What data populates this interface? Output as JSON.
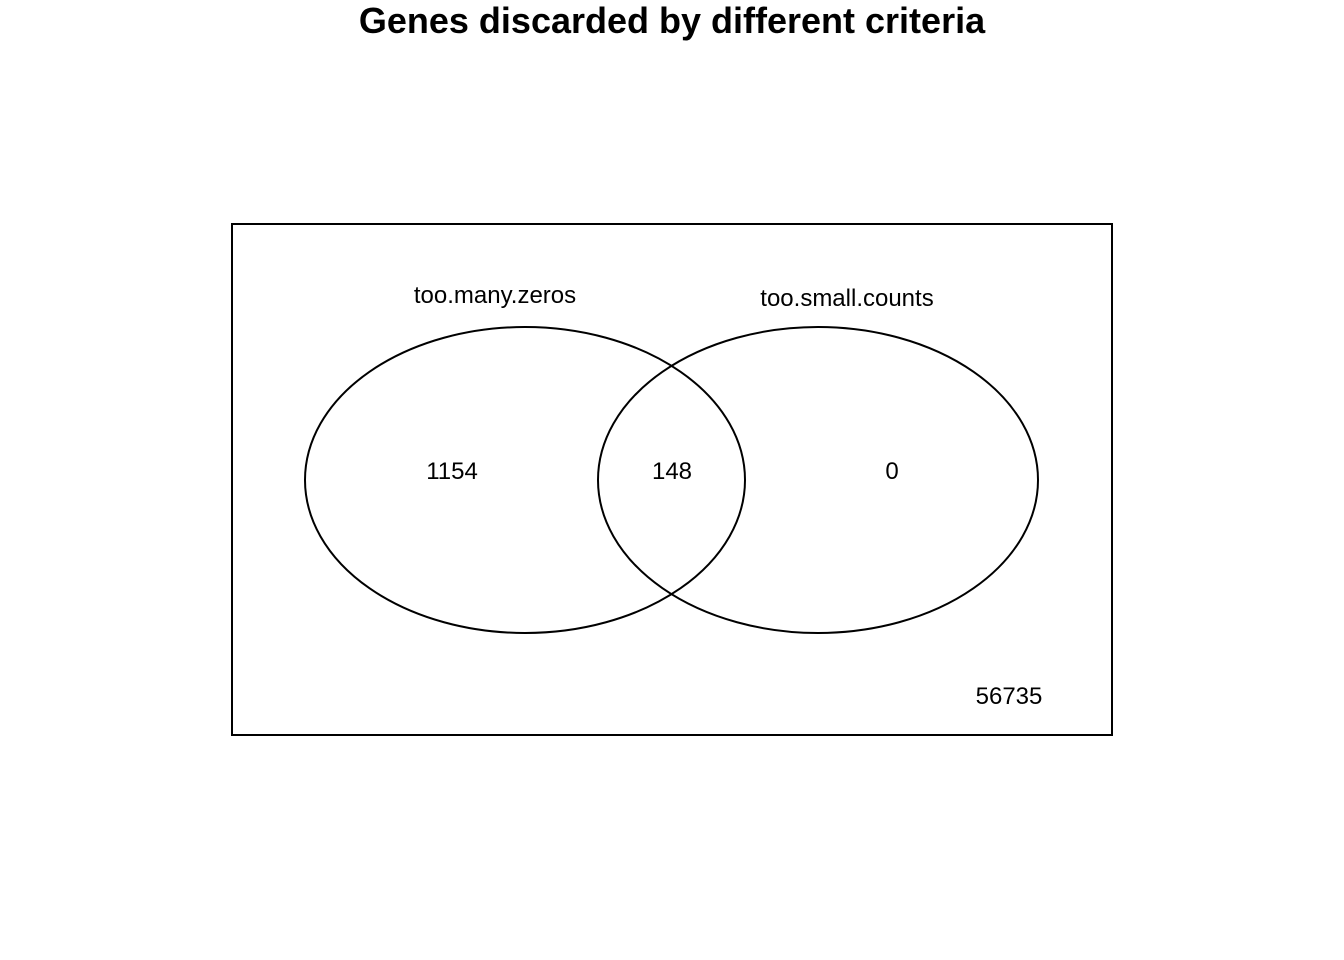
{
  "title": "Genes discarded by different criteria",
  "venn": {
    "sets": [
      {
        "name": "too.many.zeros"
      },
      {
        "name": "too.small.counts"
      }
    ],
    "counts": {
      "too_many_zeros_only": "1154",
      "both": "148",
      "too_small_counts_only": "0",
      "neither": "56735"
    }
  },
  "colors": {
    "stroke": "#000000",
    "background": "#ffffff"
  }
}
